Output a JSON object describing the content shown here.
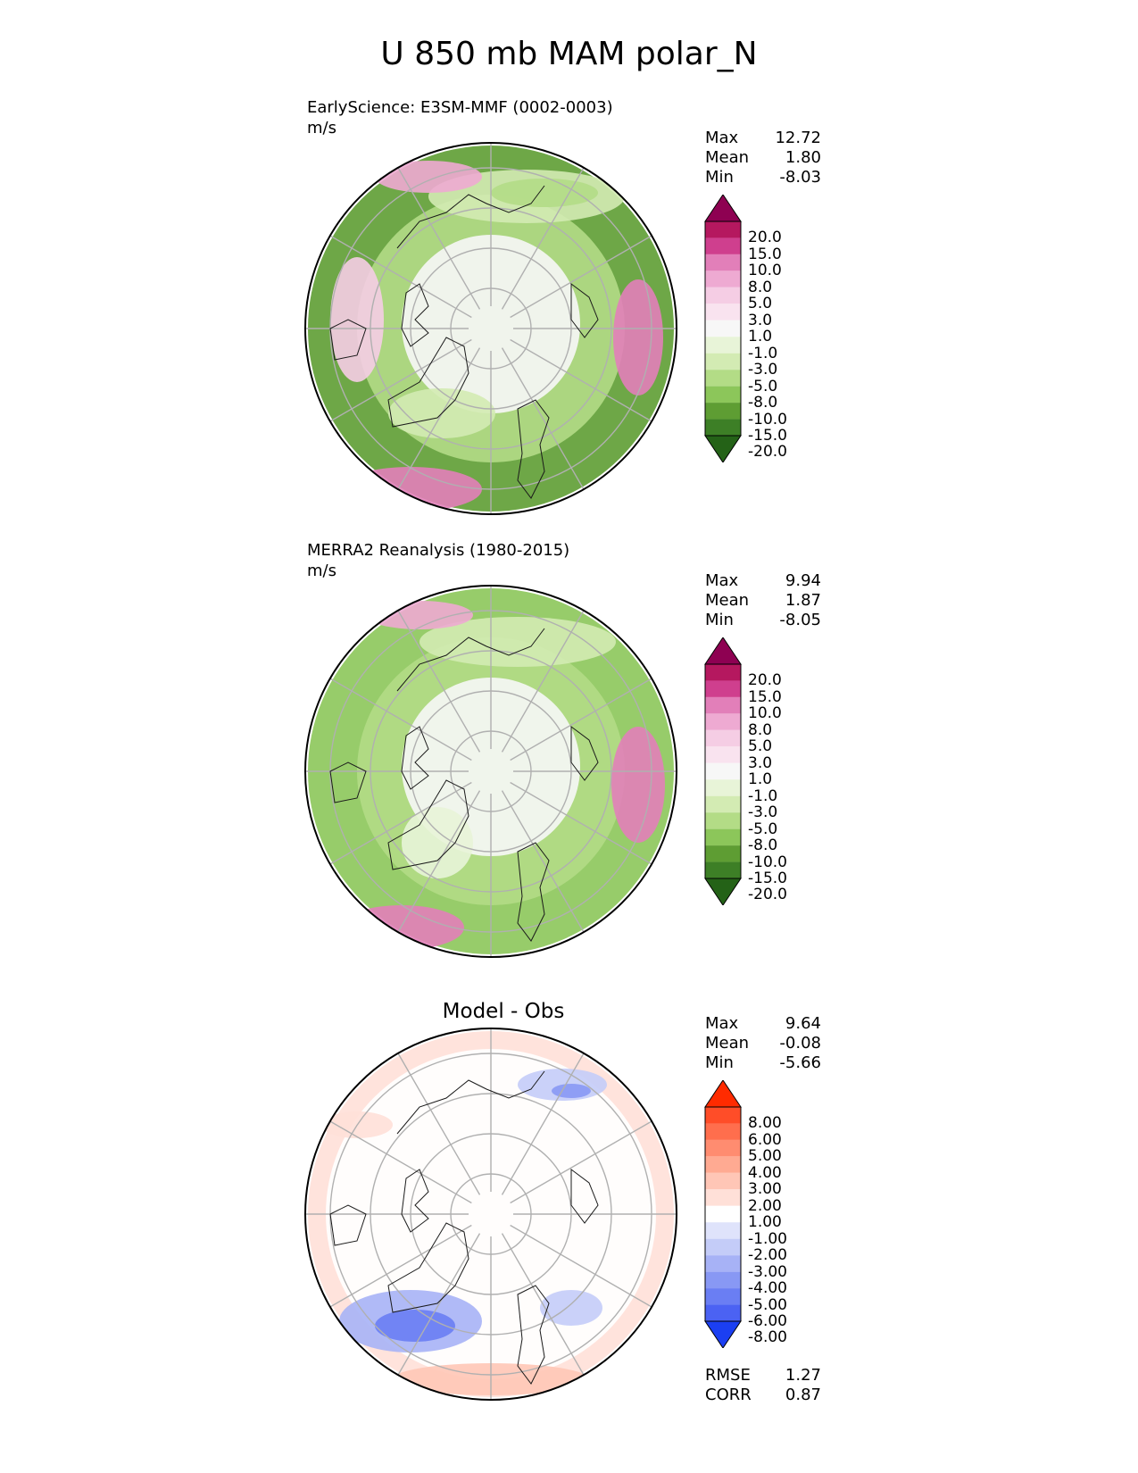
{
  "title": "U 850 mb MAM polar_N",
  "panels": [
    {
      "heading": "EarlyScience: E3SM-MMF (0002-0003)",
      "units": "m/s",
      "stats": [
        {
          "label": "Max",
          "value": "12.72"
        },
        {
          "label": "Mean",
          "value": "1.80"
        },
        {
          "label": "Min",
          "value": "-8.03"
        }
      ]
    },
    {
      "heading": "MERRA2 Reanalysis (1980-2015)",
      "units": "m/s",
      "stats": [
        {
          "label": "Max",
          "value": "9.94"
        },
        {
          "label": "Mean",
          "value": "1.87"
        },
        {
          "label": "Min",
          "value": "-8.05"
        }
      ]
    },
    {
      "heading": "Model - Obs",
      "stats": [
        {
          "label": "Max",
          "value": "9.64"
        },
        {
          "label": "Mean",
          "value": "-0.08"
        },
        {
          "label": "Min",
          "value": "-5.66"
        }
      ],
      "metrics": [
        {
          "label": "RMSE",
          "value": "1.27"
        },
        {
          "label": "CORR",
          "value": "0.87"
        }
      ]
    }
  ],
  "chart_data": [
    {
      "type": "heatmap",
      "projection": "north polar stereographic",
      "title": "EarlyScience: E3SM-MMF (0002-0003)",
      "units": "m/s",
      "colorbar": {
        "levels": [
          "20.0",
          "15.0",
          "10.0",
          "8.0",
          "5.0",
          "3.0",
          "1.0",
          "-1.0",
          "-3.0",
          "-5.0",
          "-8.0",
          "-10.0",
          "-15.0",
          "-20.0"
        ],
        "colors": [
          "#8e0152",
          "#b5185f",
          "#cf3f8e",
          "#e27fb9",
          "#eeaad2",
          "#f5cde4",
          "#f9e3ef",
          "#f7f7f7",
          "#e8f4d8",
          "#d3ebb3",
          "#b3dc86",
          "#8cc65a",
          "#5e9d33",
          "#3d7f26",
          "#246217"
        ],
        "extend": "both"
      },
      "stats": {
        "max": 12.72,
        "mean": 1.8,
        "min": -8.03
      }
    },
    {
      "type": "heatmap",
      "projection": "north polar stereographic",
      "title": "MERRA2 Reanalysis (1980-2015)",
      "units": "m/s",
      "colorbar": {
        "levels": [
          "20.0",
          "15.0",
          "10.0",
          "8.0",
          "5.0",
          "3.0",
          "1.0",
          "-1.0",
          "-3.0",
          "-5.0",
          "-8.0",
          "-10.0",
          "-15.0",
          "-20.0"
        ],
        "colors": [
          "#8e0152",
          "#b5185f",
          "#cf3f8e",
          "#e27fb9",
          "#eeaad2",
          "#f5cde4",
          "#f9e3ef",
          "#f7f7f7",
          "#e8f4d8",
          "#d3ebb3",
          "#b3dc86",
          "#8cc65a",
          "#5e9d33",
          "#3d7f26",
          "#246217"
        ],
        "extend": "both"
      },
      "stats": {
        "max": 9.94,
        "mean": 1.87,
        "min": -8.05
      }
    },
    {
      "type": "heatmap",
      "projection": "north polar stereographic",
      "title": "Model - Obs",
      "colorbar": {
        "levels": [
          "8.00",
          "6.00",
          "5.00",
          "4.00",
          "3.00",
          "2.00",
          "1.00",
          "-1.00",
          "-2.00",
          "-3.00",
          "-4.00",
          "-5.00",
          "-6.00",
          "-8.00"
        ],
        "colors": [
          "#ff2b00",
          "#ff4d28",
          "#ff6e4d",
          "#ff8c70",
          "#ffaa92",
          "#ffc6b6",
          "#ffe0d8",
          "#ffffff",
          "#dfe3fb",
          "#c4ccf8",
          "#a7b2f6",
          "#8898f4",
          "#6a7ef3",
          "#4b62f3",
          "#1b3ff2"
        ],
        "extend": "both"
      },
      "stats": {
        "max": 9.64,
        "mean": -0.08,
        "min": -5.66
      },
      "metrics": {
        "rmse": 1.27,
        "corr": 0.87
      }
    }
  ]
}
